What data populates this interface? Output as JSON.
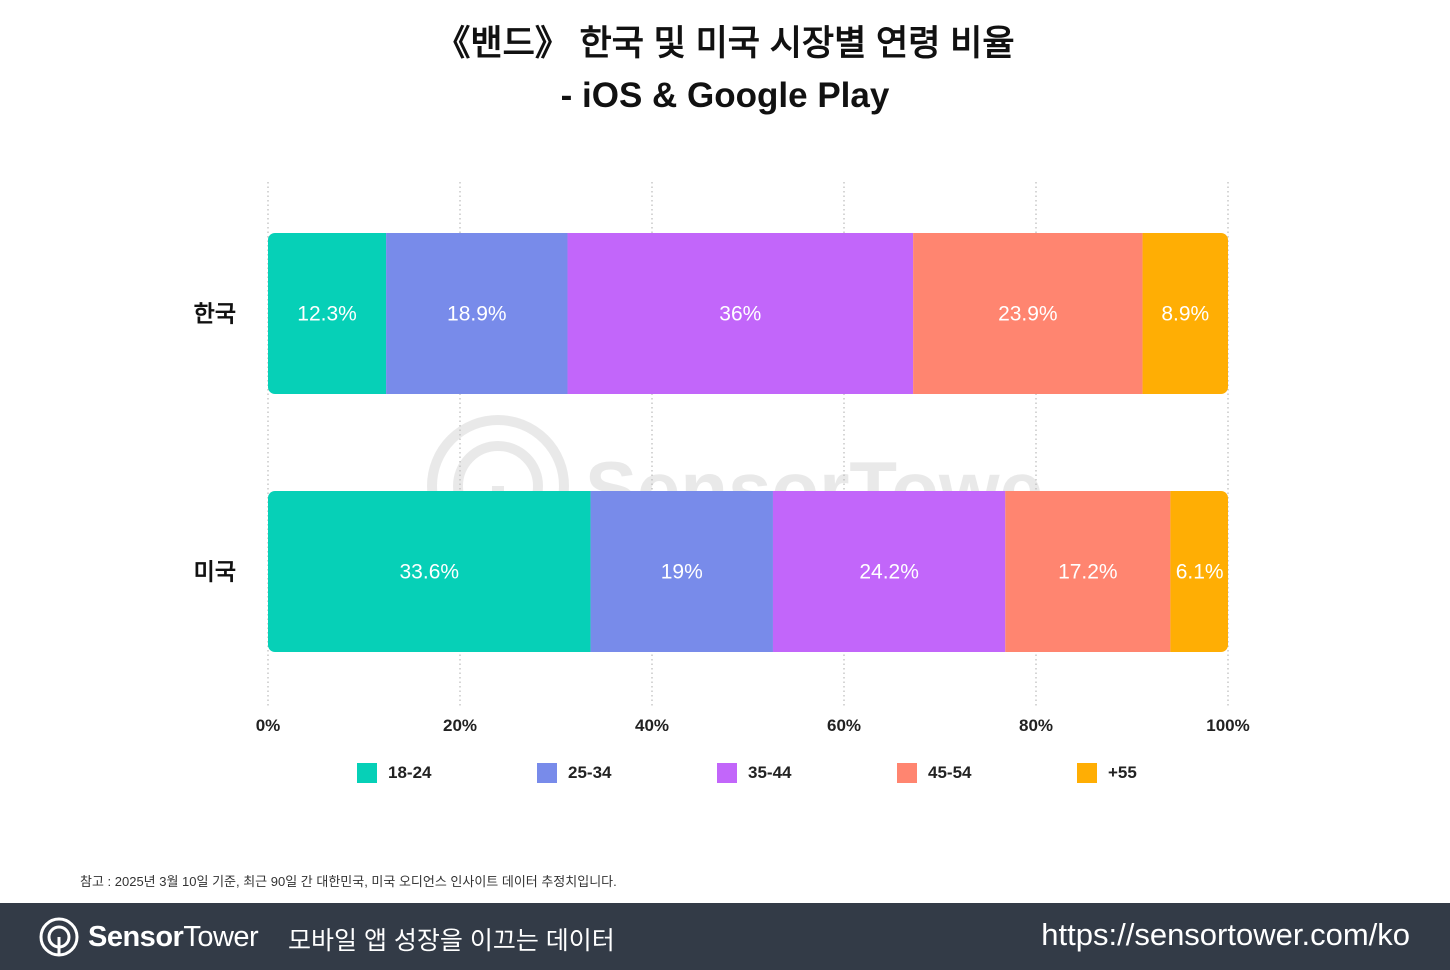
{
  "title": {
    "line1": "《밴드》 한국 및 미국 시장별 연령 비율",
    "line2": "- iOS & Google Play"
  },
  "chart_data": {
    "type": "bar",
    "orientation": "horizontal",
    "stacked": true,
    "categories": [
      "한국",
      "미국"
    ],
    "series": [
      {
        "name": "18-24",
        "color": "#06d0b7",
        "values": [
          12.3,
          33.6
        ],
        "labels": [
          "12.3%",
          "33.6%"
        ]
      },
      {
        "name": "25-34",
        "color": "#788bea",
        "values": [
          18.9,
          19
        ],
        "labels": [
          "18.9%",
          "19%"
        ]
      },
      {
        "name": "35-44",
        "color": "#c266fa",
        "values": [
          36,
          24.2
        ],
        "labels": [
          "36%",
          "24.2%"
        ]
      },
      {
        "name": "45-54",
        "color": "#ff8570",
        "values": [
          23.9,
          17.2
        ],
        "labels": [
          "23.9%",
          "17.2%"
        ]
      },
      {
        "name": "+55",
        "color": "#ffae04",
        "values": [
          8.9,
          6.1
        ],
        "labels": [
          "8.9%",
          "6.1%"
        ]
      }
    ],
    "xlim": [
      0,
      100
    ],
    "xticks": [
      "0%",
      "20%",
      "40%",
      "60%",
      "80%",
      "100%"
    ],
    "grid": "vertical dotted",
    "legend": "bottom"
  },
  "note": "참고 : 2025년 3월 10일 기준, 최근 90일 간 대한민국, 미국 오디언스 인사이트 데이터 추정치입니다.",
  "watermark": {
    "text": "SensorTower"
  },
  "footer": {
    "logo_part1": "Sensor",
    "logo_part2": "Tower",
    "tagline": "모바일 앱 성장을 이끄는 데이터",
    "url": "https://sensortower.com/ko"
  }
}
